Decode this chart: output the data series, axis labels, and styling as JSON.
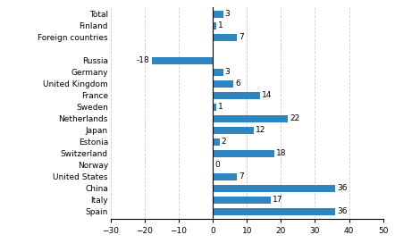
{
  "categories": [
    "Spain",
    "Italy",
    "China",
    "United States",
    "Norway",
    "Switzerland",
    "Estonia",
    "Japan",
    "Netherlands",
    "Sweden",
    "France",
    "United Kingdom",
    "Germany",
    "Russia",
    "",
    "Foreign countries",
    "Finland",
    "Total"
  ],
  "values": [
    36,
    17,
    36,
    7,
    0,
    18,
    2,
    12,
    22,
    1,
    14,
    6,
    3,
    -18,
    null,
    7,
    1,
    3
  ],
  "bar_color": "#2E86C1",
  "xlim": [
    -30,
    50
  ],
  "xticks": [
    -30,
    -20,
    -10,
    0,
    10,
    20,
    30,
    40,
    50
  ],
  "label_fontsize": 6.5,
  "value_fontsize": 6.5,
  "bar_height": 0.55,
  "figsize": [
    4.42,
    2.72
  ],
  "dpi": 100
}
